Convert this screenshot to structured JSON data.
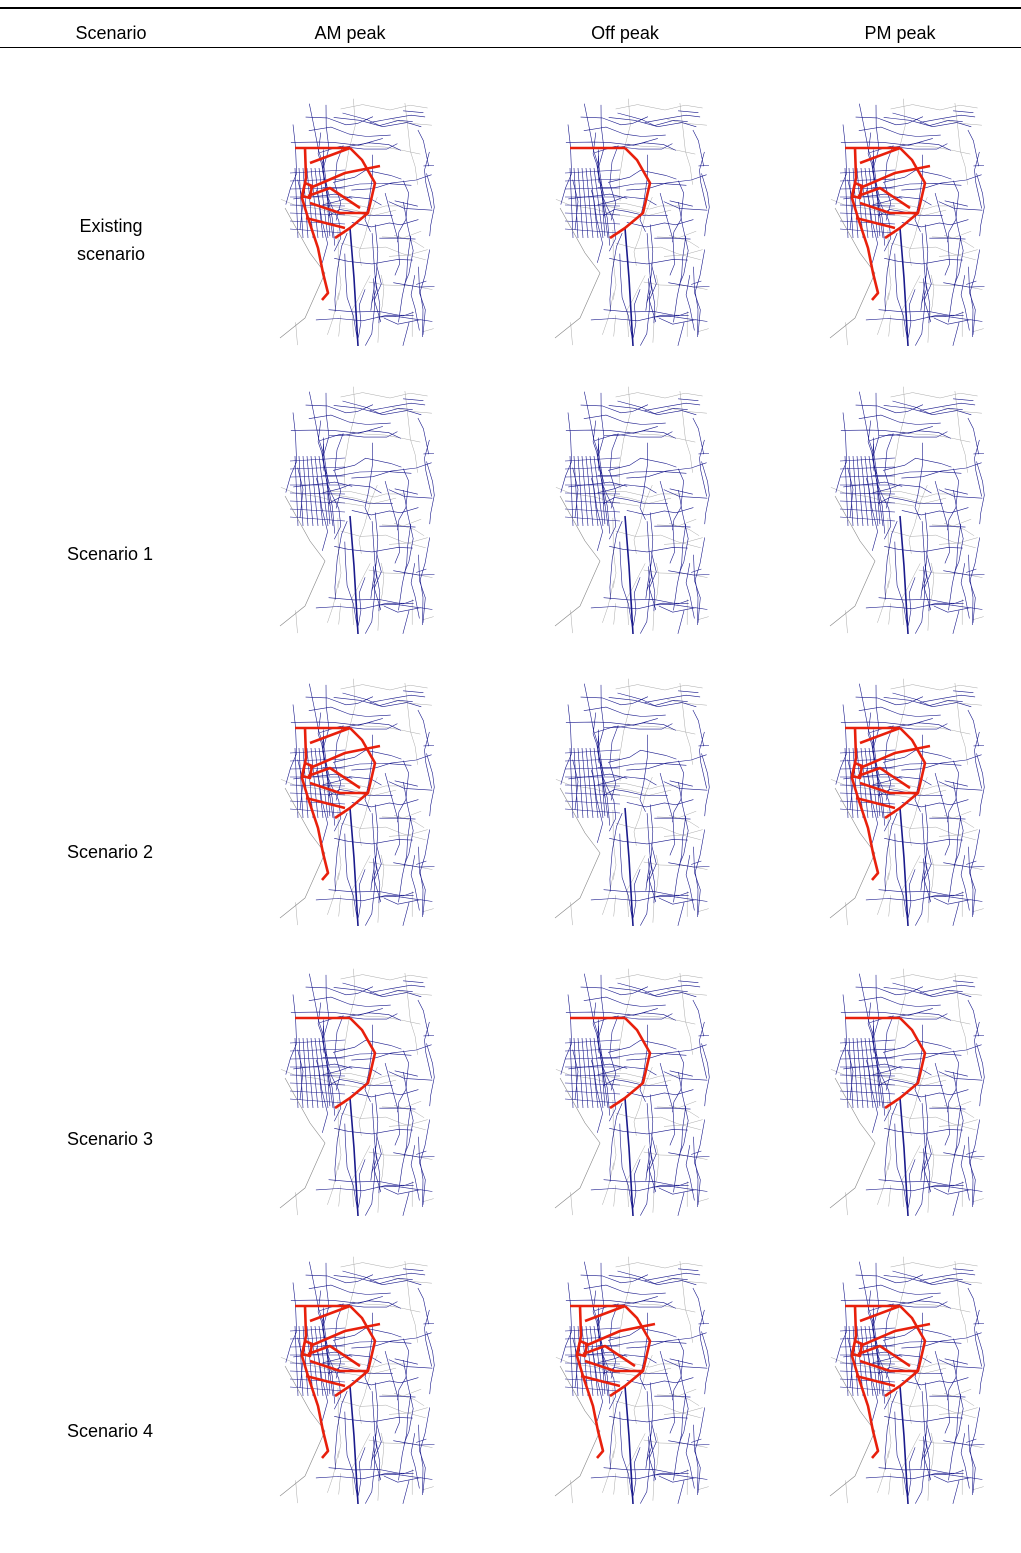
{
  "header": {
    "columns": [
      "Scenario",
      "AM peak",
      "Off peak",
      "PM peak"
    ]
  },
  "rows": [
    {
      "label": "Existing scenario"
    },
    {
      "label": "Scenario 1"
    },
    {
      "label": "Scenario 2"
    },
    {
      "label": "Scenario 3"
    },
    {
      "label": "Scenario 4"
    }
  ]
}
